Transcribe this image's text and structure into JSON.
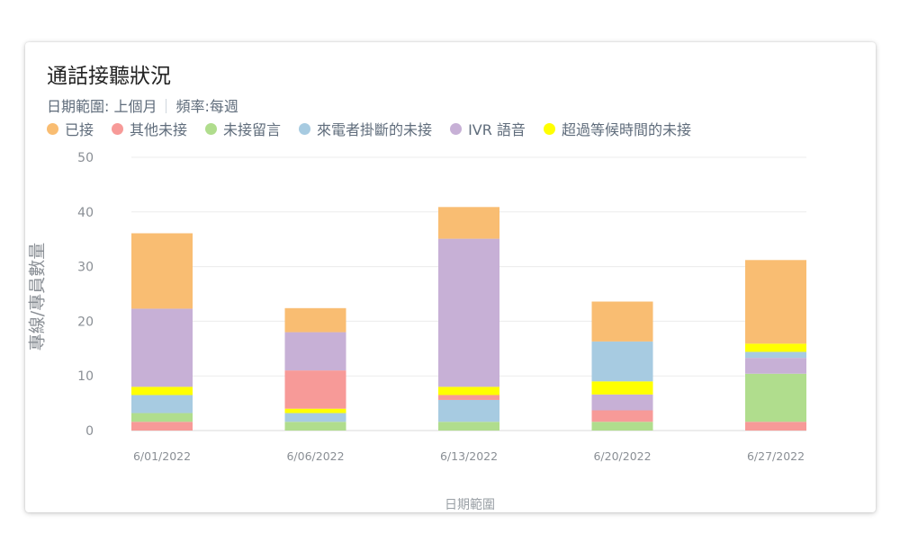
{
  "card": {
    "title": "通話接聽狀況",
    "date_range_label": "日期範圍: 上個月",
    "frequency_label": "頻率:每週"
  },
  "chart_data": {
    "type": "bar",
    "stacked": true,
    "categories": [
      "6/01/2022",
      "6/06/2022",
      "6/13/2022",
      "6/20/2022",
      "6/27/2022"
    ],
    "xlabel": "日期範圍",
    "ylabel": "專線/專員數量",
    "ylim": [
      0,
      50
    ],
    "yticks": [
      0,
      10,
      20,
      30,
      40,
      50
    ],
    "grid": true,
    "legend_position": "top-left",
    "series": [
      {
        "name": "其他未接",
        "color": "#f79a98",
        "values": [
          1.6,
          0,
          0,
          0,
          1.6
        ]
      },
      {
        "name": "未接留言",
        "color": "#b0dd8d",
        "values": [
          1.6,
          1.6,
          1.6,
          1.6,
          8.8
        ]
      },
      {
        "name": "來電者掛斷的未接",
        "color": "#a7cbe1",
        "values": [
          3.3,
          1.6,
          4.0,
          0,
          0
        ]
      },
      {
        "name": "其他未接",
        "color": "#f79a98",
        "values": [
          0,
          0,
          0.9,
          2.1,
          0
        ]
      },
      {
        "name": "IVR 語音",
        "color": "#c7b0d6",
        "values": [
          0,
          0,
          0,
          2.9,
          2.9
        ]
      },
      {
        "name": "其他未接",
        "color": "#f79a98",
        "values": [
          0,
          0,
          0,
          0,
          0
        ]
      },
      {
        "name": "來電者掛斷的未接",
        "color": "#a7cbe1",
        "values": [
          0,
          0,
          0,
          0,
          1.1
        ]
      },
      {
        "name": "超過等候時間的未接",
        "color": "#ffff00",
        "values": [
          1.5,
          0.8,
          1.5,
          2.4,
          1.5
        ]
      },
      {
        "name": "其他未接",
        "color": "#f79a98",
        "values": [
          0,
          7.0,
          0,
          0,
          0
        ]
      },
      {
        "name": "來電者掛斷的未接",
        "color": "#a7cbe1",
        "values": [
          0,
          0,
          0,
          7.3,
          0
        ]
      },
      {
        "name": "IVR 語音",
        "color": "#c7b0d6",
        "values": [
          14.3,
          7.0,
          27.1,
          0,
          0
        ]
      },
      {
        "name": "已接",
        "color": "#f9bd72",
        "values": [
          13.8,
          4.4,
          5.8,
          7.3,
          15.3
        ]
      }
    ],
    "legend": [
      {
        "name": "已接",
        "color": "#f9bd72"
      },
      {
        "name": "其他未接",
        "color": "#f79a98"
      },
      {
        "name": "未接留言",
        "color": "#b0dd8d"
      },
      {
        "name": "來電者掛斷的未接",
        "color": "#a7cbe1"
      },
      {
        "name": "IVR 語音",
        "color": "#c7b0d6"
      },
      {
        "name": "超過等候時間的未接",
        "color": "#ffff00"
      }
    ]
  }
}
